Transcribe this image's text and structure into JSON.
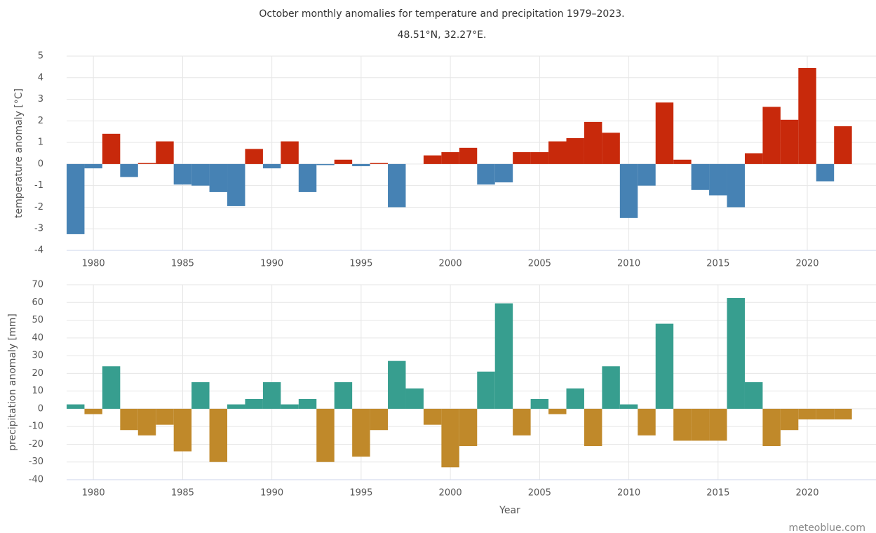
{
  "chart_data": [
    {
      "type": "bar",
      "title": "October monthly anomalies for temperature and precipitation 1979–2023.",
      "subtitle": "48.51°N, 32.27°E.",
      "y_label": "temperature anomaly [°C]",
      "x": [
        1979,
        1980,
        1981,
        1982,
        1983,
        1984,
        1985,
        1986,
        1987,
        1988,
        1989,
        1990,
        1991,
        1992,
        1993,
        1994,
        1995,
        1996,
        1997,
        1998,
        1999,
        2000,
        2001,
        2002,
        2003,
        2004,
        2005,
        2006,
        2007,
        2008,
        2009,
        2010,
        2011,
        2012,
        2013,
        2014,
        2015,
        2016,
        2017,
        2018,
        2019,
        2020,
        2021,
        2022
      ],
      "values": [
        -3.25,
        -0.2,
        1.4,
        -0.6,
        0.05,
        1.05,
        -0.95,
        -1.0,
        -1.3,
        -1.95,
        0.7,
        -0.2,
        1.05,
        -1.3,
        -0.05,
        0.2,
        -0.1,
        0.05,
        -2.0,
        0,
        0.4,
        0.55,
        0.75,
        -0.95,
        -0.85,
        0.55,
        0.55,
        1.05,
        1.2,
        1.95,
        1.45,
        -2.5,
        -1.0,
        2.85,
        0.2,
        -1.2,
        -1.45,
        -2.0,
        0.5,
        2.65,
        2.05,
        4.45,
        -0.8,
        1.75
      ],
      "xlim": [
        1978.5,
        2023.85
      ],
      "xticks": [
        1980,
        1985,
        1990,
        1995,
        2000,
        2005,
        2010,
        2015,
        2020
      ],
      "ylim": [
        -4,
        5
      ],
      "yticks": [
        -4,
        -3,
        -2,
        -1,
        0,
        1,
        2,
        3,
        4,
        5
      ],
      "positive_color": "#c8290b",
      "negative_color": "#4682b4",
      "grid": true
    },
    {
      "type": "bar",
      "x_label": "Year",
      "y_label": "precipitation anomaly [mm]",
      "x": [
        1979,
        1980,
        1981,
        1982,
        1983,
        1984,
        1985,
        1986,
        1987,
        1988,
        1989,
        1990,
        1991,
        1992,
        1993,
        1994,
        1995,
        1996,
        1997,
        1998,
        1999,
        2000,
        2001,
        2002,
        2003,
        2004,
        2005,
        2006,
        2007,
        2008,
        2009,
        2010,
        2011,
        2012,
        2013,
        2014,
        2015,
        2016,
        2017,
        2018,
        2019,
        2020,
        2021,
        2022
      ],
      "values": [
        2.5,
        -3,
        24,
        -12,
        -15,
        -9,
        -24,
        15,
        -30,
        2.5,
        5.5,
        15,
        2.5,
        5.5,
        -30,
        15,
        -27,
        -12,
        27,
        11.5,
        -9,
        -33,
        -21,
        21,
        59.5,
        -15,
        5.5,
        -3,
        11.5,
        -21,
        24,
        2.5,
        -15,
        48,
        -18,
        -18,
        -18,
        62.5,
        15,
        -21,
        -12,
        -6,
        -6,
        -6
      ],
      "xlim": [
        1978.5,
        2023.85
      ],
      "xticks": [
        1980,
        1985,
        1990,
        1995,
        2000,
        2005,
        2010,
        2015,
        2020
      ],
      "ylim": [
        -40,
        70
      ],
      "yticks": [
        -40,
        -30,
        -20,
        -10,
        0,
        10,
        20,
        30,
        40,
        50,
        60,
        70
      ],
      "positive_color": "#379e8f",
      "negative_color": "#c0892a",
      "grid": true
    }
  ],
  "source": "meteoblue.com"
}
